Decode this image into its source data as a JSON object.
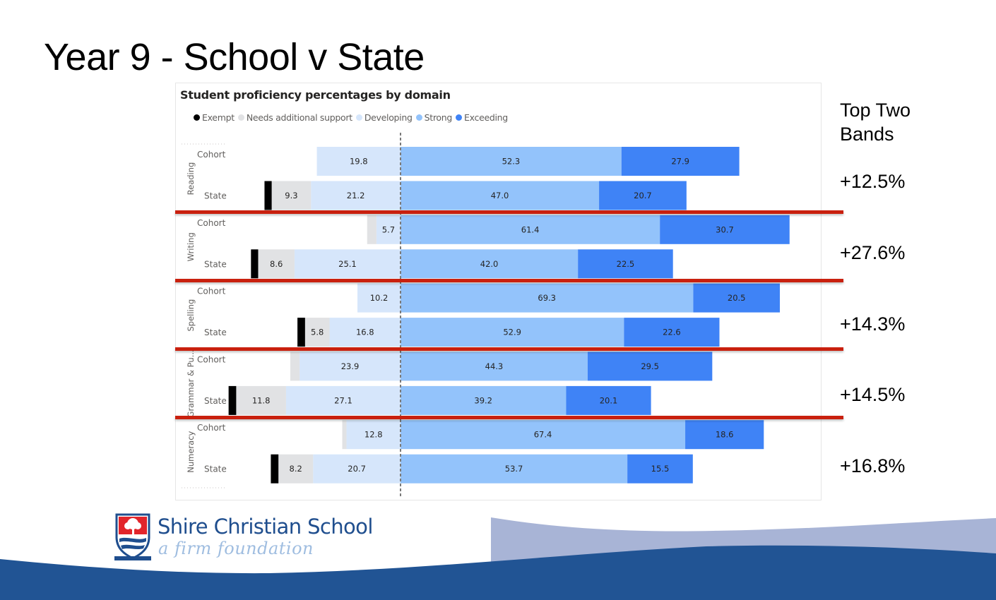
{
  "slide": {
    "title": "Year 9 - School v State"
  },
  "right_panel": {
    "heading_line1": "Top Two",
    "heading_line2": "Bands",
    "differences": [
      "+12.5%",
      "+27.6%",
      "+14.3%",
      "+14.5%",
      "+16.8%"
    ]
  },
  "branding": {
    "school_name": "Shire Christian School",
    "tagline": "a firm foundation",
    "colors": {
      "primary": "#1f4e8e",
      "wave_light": "#a8b4d6",
      "wave_dark": "#215494",
      "crest_red": "#e2252b"
    }
  },
  "colors": {
    "divider": "#c9200e",
    "Exempt": "#000000",
    "Needs additional support": "#e1e2e4",
    "Developing": "#d6e6fb",
    "Strong": "#93c3fb",
    "Exceeding": "#3f83f6"
  },
  "chart_data": {
    "type": "bar",
    "orientation": "horizontal-diverging-stacked",
    "title": "Student proficiency percentages by domain",
    "legend": [
      "Exempt",
      "Needs additional support",
      "Developing",
      "Strong",
      "Exceeding"
    ],
    "legend_position": "top-left",
    "left_of_center": [
      "Exempt",
      "Needs additional support",
      "Developing"
    ],
    "right_of_center": [
      "Strong",
      "Exceeding"
    ],
    "xlabel": "",
    "ylabel": "",
    "groups": [
      {
        "domain": "Reading",
        "rows": [
          {
            "label": "Cohort",
            "values": {
              "Exempt": 0,
              "Needs additional support": 0,
              "Developing": 19.8,
              "Strong": 52.3,
              "Exceeding": 27.9
            },
            "labels": {
              "Developing": "19.8",
              "Strong": "52.3",
              "Exceeding": "27.9"
            }
          },
          {
            "label": "State",
            "values": {
              "Exempt": 1.7,
              "Needs additional support": 9.3,
              "Developing": 21.2,
              "Strong": 47.0,
              "Exceeding": 20.7
            },
            "labels": {
              "Needs additional support": "9.3",
              "Developing": "21.2",
              "Strong": "47.0",
              "Exceeding": "20.7"
            }
          }
        ]
      },
      {
        "domain": "Writing",
        "rows": [
          {
            "label": "Cohort",
            "values": {
              "Exempt": 0,
              "Needs additional support": 2.2,
              "Developing": 5.7,
              "Strong": 61.4,
              "Exceeding": 30.7
            },
            "labels": {
              "Developing": "5.7",
              "Strong": "61.4",
              "Exceeding": "30.7"
            }
          },
          {
            "label": "State",
            "values": {
              "Exempt": 1.7,
              "Needs additional support": 8.6,
              "Developing": 25.1,
              "Strong": 42.0,
              "Exceeding": 22.5
            },
            "labels": {
              "Needs additional support": "8.6",
              "Developing": "25.1",
              "Strong": "42.0",
              "Exceeding": "22.5"
            }
          }
        ]
      },
      {
        "domain": "Spelling",
        "rows": [
          {
            "label": "Cohort",
            "values": {
              "Exempt": 0,
              "Needs additional support": 0,
              "Developing": 10.2,
              "Strong": 69.3,
              "Exceeding": 20.5
            },
            "labels": {
              "Developing": "10.2",
              "Strong": "69.3",
              "Exceeding": "20.5"
            }
          },
          {
            "label": "State",
            "values": {
              "Exempt": 1.8,
              "Needs additional support": 5.8,
              "Developing": 16.8,
              "Strong": 52.9,
              "Exceeding": 22.6
            },
            "labels": {
              "Needs additional support": "5.8",
              "Developing": "16.8",
              "Strong": "52.9",
              "Exceeding": "22.6"
            }
          }
        ]
      },
      {
        "domain": "Grammar & Pu...",
        "rows": [
          {
            "label": "Cohort",
            "values": {
              "Exempt": 0,
              "Needs additional support": 2.2,
              "Developing": 23.9,
              "Strong": 44.3,
              "Exceeding": 29.5
            },
            "labels": {
              "Developing": "23.9",
              "Strong": "44.3",
              "Exceeding": "29.5"
            }
          },
          {
            "label": "State",
            "values": {
              "Exempt": 1.8,
              "Needs additional support": 11.8,
              "Developing": 27.1,
              "Strong": 39.2,
              "Exceeding": 20.1
            },
            "labels": {
              "Needs additional support": "11.8",
              "Developing": "27.1",
              "Strong": "39.2",
              "Exceeding": "20.1"
            }
          }
        ]
      },
      {
        "domain": "Numeracy",
        "rows": [
          {
            "label": "Cohort",
            "values": {
              "Exempt": 0,
              "Needs additional support": 1.0,
              "Developing": 12.8,
              "Strong": 67.4,
              "Exceeding": 18.6
            },
            "labels": {
              "Developing": "12.8",
              "Strong": "67.4",
              "Exceeding": "18.6"
            }
          },
          {
            "label": "State",
            "values": {
              "Exempt": 1.8,
              "Needs additional support": 8.2,
              "Developing": 20.7,
              "Strong": 53.7,
              "Exceeding": 15.5
            },
            "labels": {
              "Needs additional support": "8.2",
              "Developing": "20.7",
              "Strong": "53.7",
              "Exceeding": "15.5"
            }
          }
        ]
      }
    ]
  }
}
